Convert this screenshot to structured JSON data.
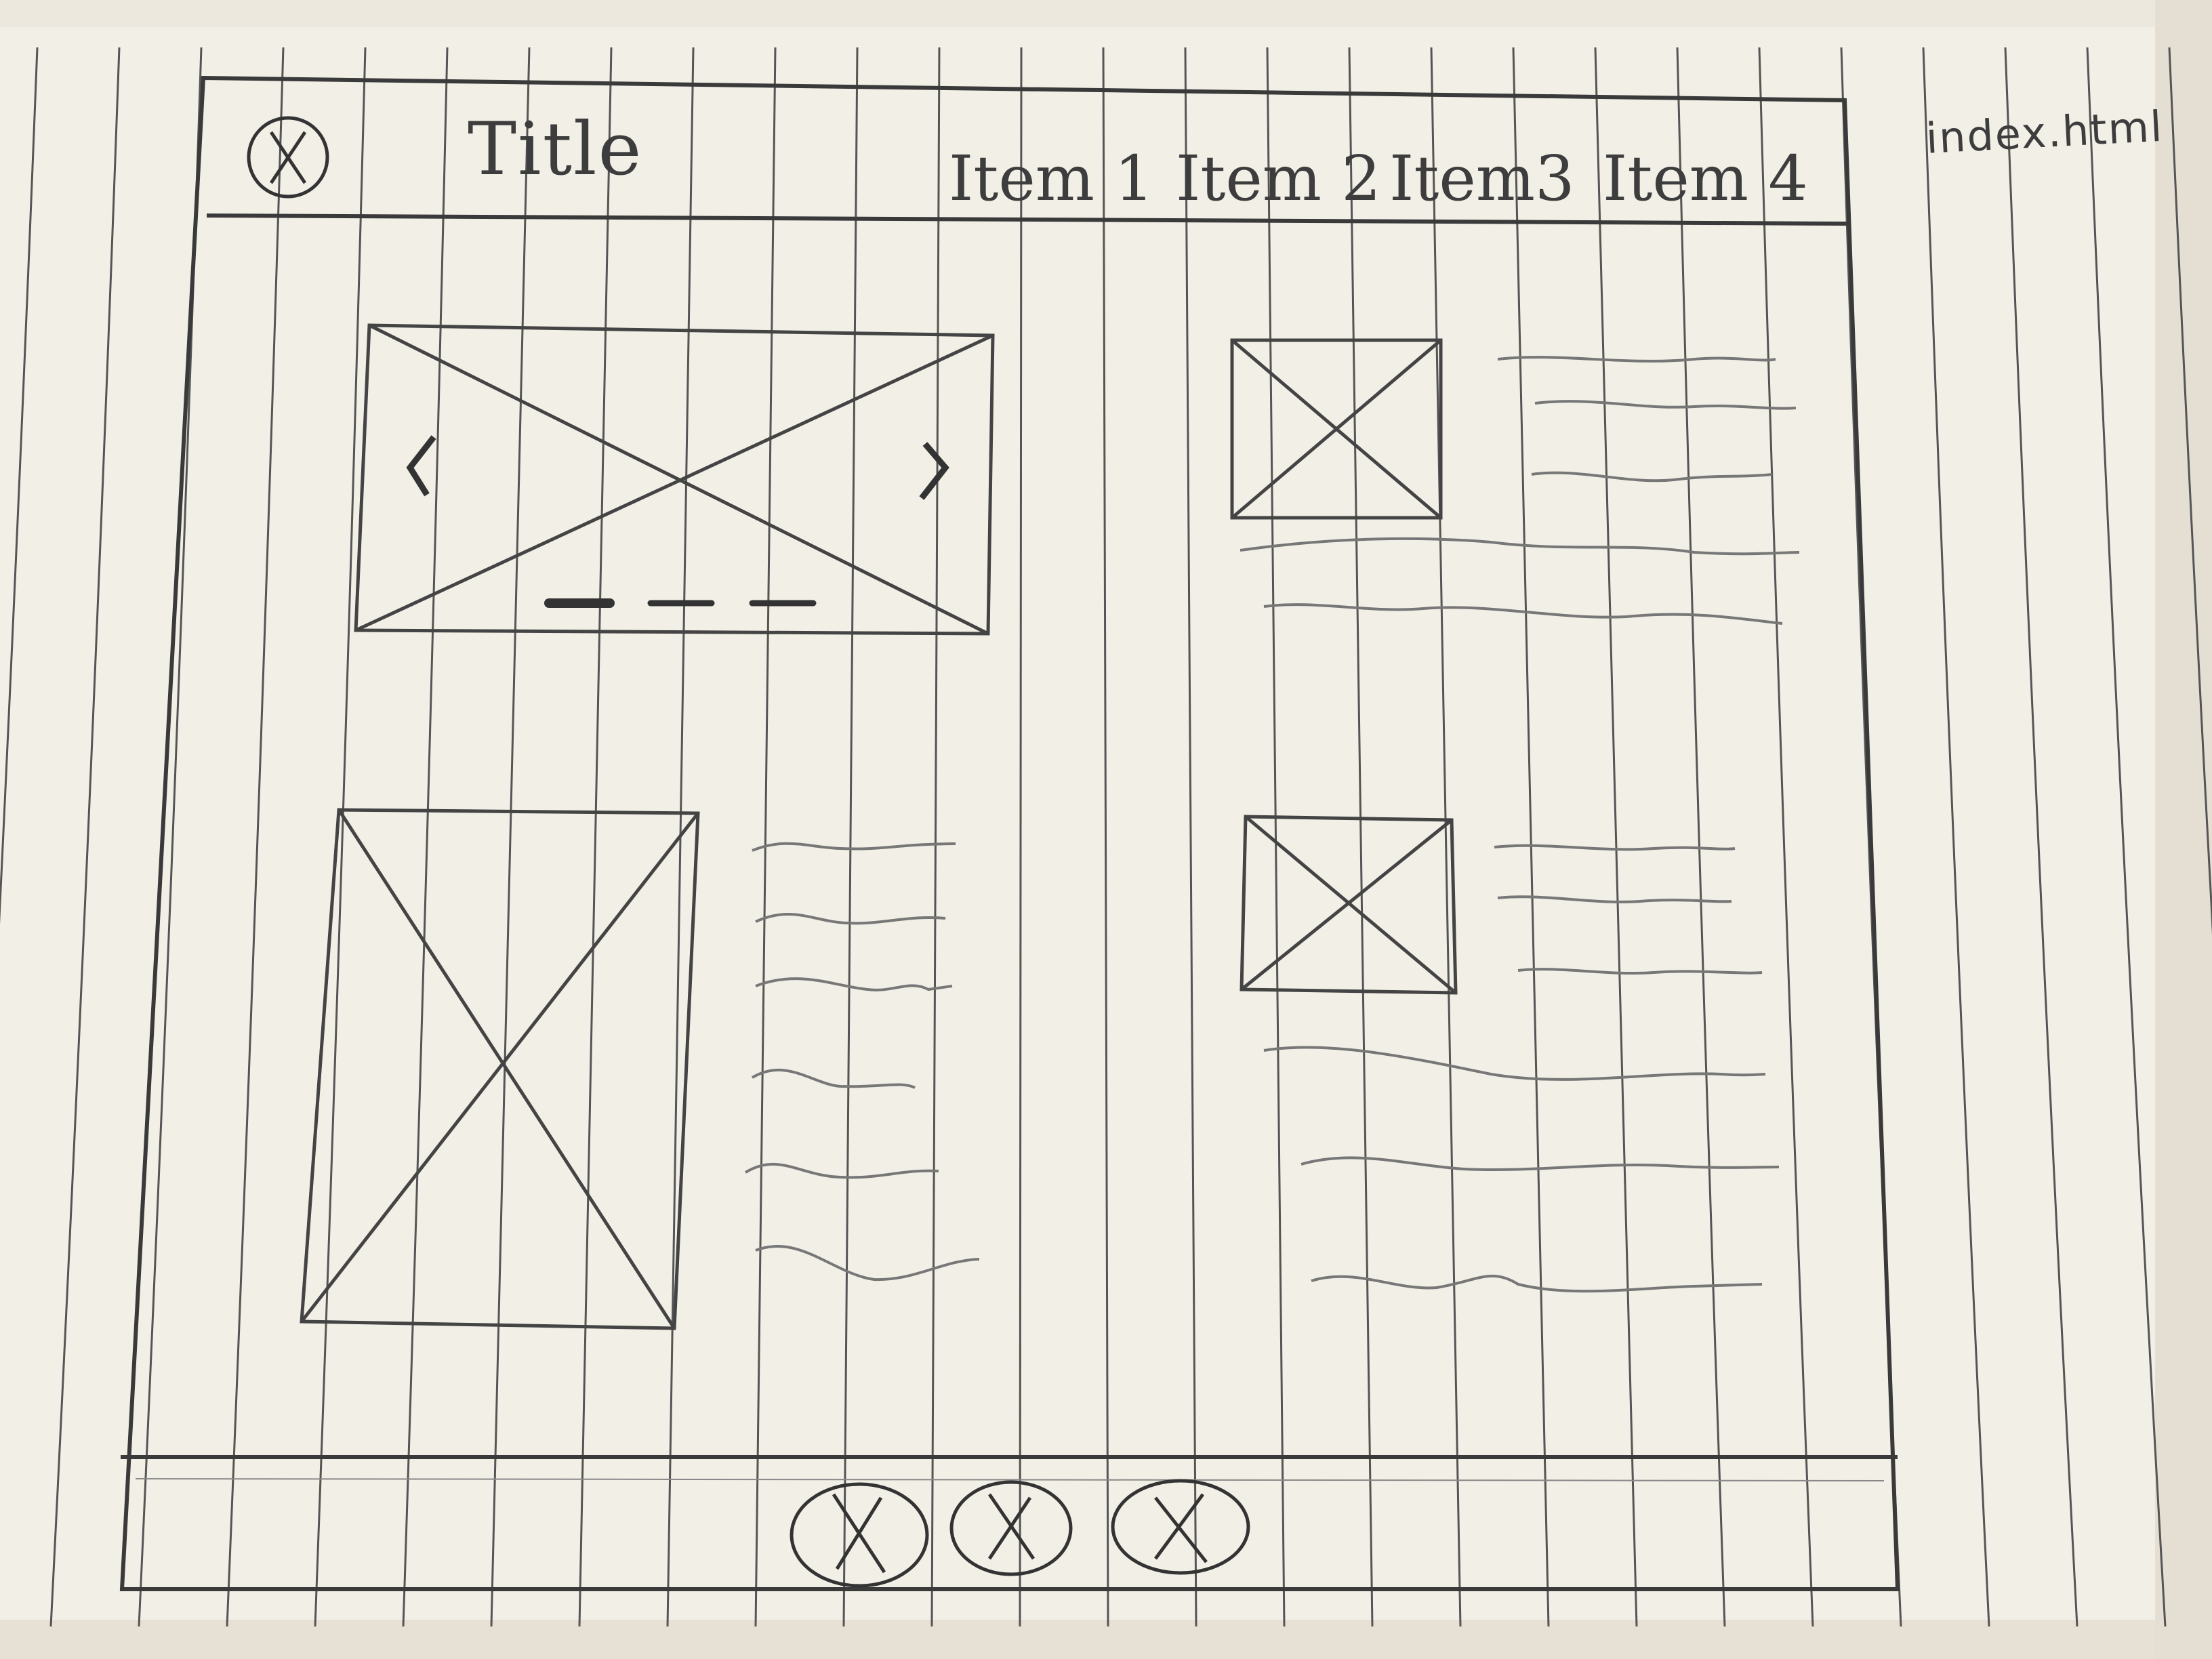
{
  "filename": "index.html",
  "header": {
    "title": "Title",
    "nav_items": [
      {
        "label": "Item 1"
      },
      {
        "label": "Item 2"
      },
      {
        "label": "Item3"
      },
      {
        "label": "Item 4"
      }
    ]
  },
  "icons": {
    "app_logo": "placeholder-circle-x-icon",
    "carousel_prev": "chevron-left-icon",
    "carousel_next": "chevron-right-icon",
    "footer_buttons": [
      "placeholder-circle-x-icon",
      "placeholder-circle-x-icon",
      "placeholder-circle-x-icon"
    ]
  },
  "carousel": {
    "indicator_count": 3,
    "active_index": 0
  },
  "colors": {
    "paper": "#f2efe6",
    "pencil": "#3d3d3d",
    "ruled_line": "#555555"
  }
}
